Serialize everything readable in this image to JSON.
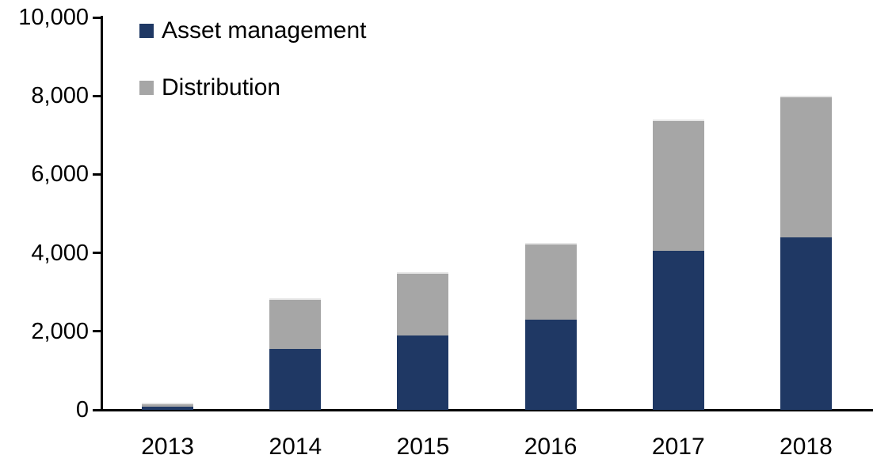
{
  "chart_data": {
    "type": "bar",
    "stacked": true,
    "title": "",
    "xlabel": "",
    "ylabel": "",
    "categories": [
      "2013",
      "2014",
      "2015",
      "2016",
      "2017",
      "2018"
    ],
    "series": [
      {
        "name": "Asset management",
        "color": "#1F3864",
        "values": [
          80,
          1550,
          1900,
          2300,
          4050,
          4400
        ]
      },
      {
        "name": "Distribution",
        "color": "#A6A6A6",
        "values": [
          110,
          1300,
          1600,
          1950,
          3350,
          3600
        ]
      }
    ],
    "ylim": [
      0,
      10000
    ],
    "yticks": [
      {
        "value": 0,
        "label": "0"
      },
      {
        "value": 2000,
        "label": "2,000"
      },
      {
        "value": 4000,
        "label": "4,000"
      },
      {
        "value": 6000,
        "label": "6,000"
      },
      {
        "value": 8000,
        "label": "8,000"
      },
      {
        "value": 10000,
        "label": "10,000"
      }
    ],
    "grid": false,
    "legend_position": "top-left",
    "axis_color": "#000000",
    "background": "#FFFFFF"
  }
}
